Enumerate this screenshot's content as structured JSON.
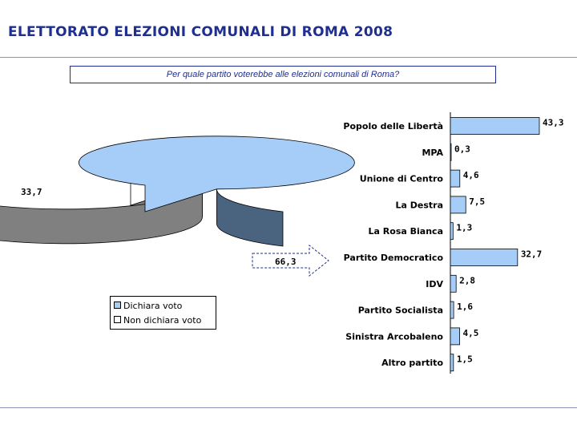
{
  "header": {
    "title": "ELETTORATO ELEZIONI COMUNALI DI ROMA 2008"
  },
  "question": "Per quale partito voterebbe alle elezioni comunali di Roma?",
  "colors": {
    "title": "#1f2f8f",
    "bar_fill": "#a6cdf7",
    "pie_dichiara_top": "#a6cdf7",
    "pie_dichiara_side": "#4a6480",
    "pie_non_top": "#ffffff",
    "pie_non_side": "#808080"
  },
  "chart_data": [
    {
      "type": "pie",
      "slices": [
        {
          "label": "Dichiara voto",
          "value": 66.3,
          "value_label": "66,3"
        },
        {
          "label": "Non dichiara voto",
          "value": 33.7,
          "value_label": "33,7"
        }
      ],
      "legend": [
        "Dichiara voto",
        "Non dichiara voto"
      ],
      "legend_position": "bottom"
    },
    {
      "type": "bar",
      "orientation": "horizontal",
      "categories": [
        "Popolo delle Libertà",
        "MPA",
        "Unione di Centro",
        "La Destra",
        "La Rosa Bianca",
        "Partito Democratico",
        "IDV",
        "Partito Socialista",
        "Sinistra Arcobaleno",
        "Altro partito"
      ],
      "values": [
        43.3,
        0.3,
        4.6,
        7.5,
        1.3,
        32.7,
        2.8,
        1.6,
        4.5,
        1.5
      ],
      "value_labels": [
        "43,3",
        "0,3",
        "4,6",
        "7,5",
        "1,3",
        "32,7",
        "2,8",
        "1,6",
        "4,5",
        "1,5"
      ],
      "xlim": [
        0,
        43.3
      ]
    }
  ]
}
